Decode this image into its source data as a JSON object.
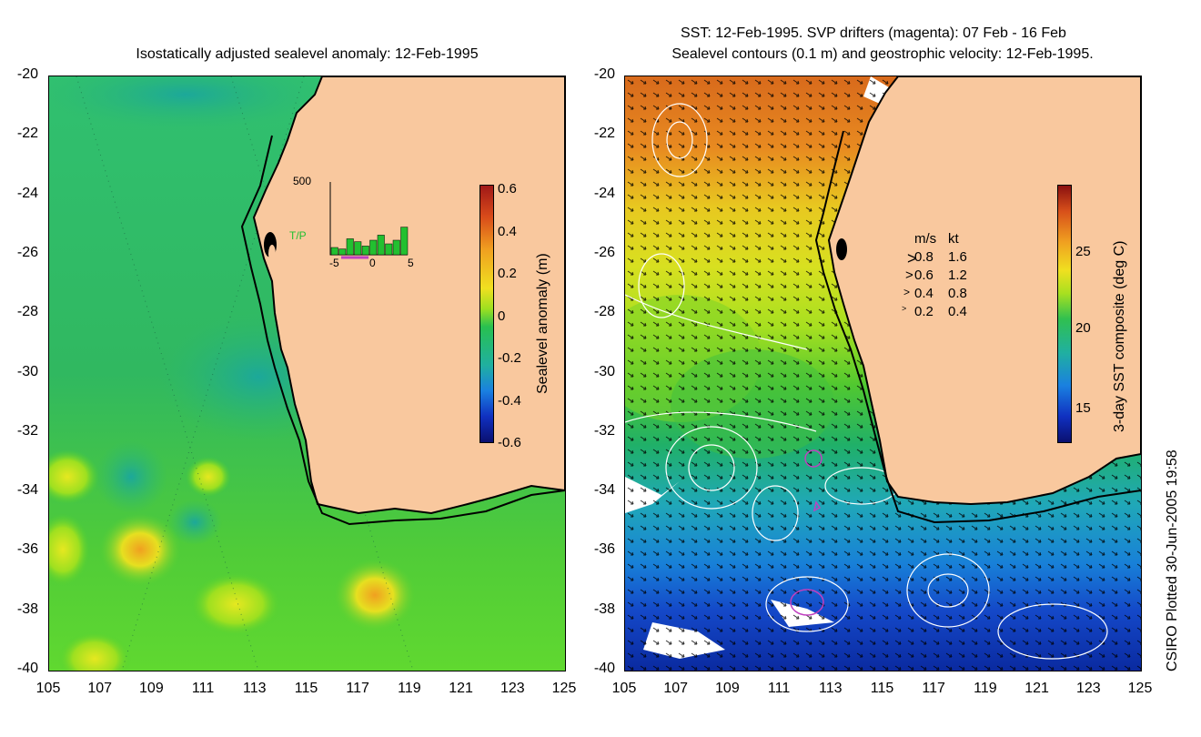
{
  "left_panel": {
    "title": "Isostatically adjusted sealevel anomaly: 12-Feb-1995",
    "colorbar": {
      "label": "Sealevel anomaly (m)",
      "ticks": [
        "0.6",
        "0.4",
        "0.2",
        "0",
        "-0.2",
        "-0.4",
        "-0.6"
      ]
    },
    "inset": {
      "ymax": "500",
      "series_label": "T/P",
      "xticks": [
        "-5",
        "0",
        "5"
      ],
      "bars": [
        0.1,
        0.08,
        0.22,
        0.18,
        0.12,
        0.2,
        0.27,
        0.15,
        0.2,
        0.38
      ]
    }
  },
  "right_panel": {
    "title_line1": "SST: 12-Feb-1995. SVP drifters (magenta): 07 Feb - 16 Feb",
    "title_line2": "Sealevel contours (0.1 m) and geostrophic velocity: 12-Feb-1995.",
    "colorbar": {
      "label": "3-day SST composite (deg C)",
      "ticks": [
        "25",
        "20",
        "15"
      ]
    },
    "velocity_legend": {
      "header_ms": "m/s",
      "header_kt": "kt",
      "rows": [
        {
          "ms": "0.8",
          "kt": "1.6"
        },
        {
          "ms": "0.6",
          "kt": "1.2"
        },
        {
          "ms": "0.4",
          "kt": "0.8"
        },
        {
          "ms": "0.2",
          "kt": "0.4"
        }
      ]
    }
  },
  "axes": {
    "y_ticks": [
      "-20",
      "-22",
      "-24",
      "-26",
      "-28",
      "-30",
      "-32",
      "-34",
      "-36",
      "-38",
      "-40"
    ],
    "x_ticks": [
      "105",
      "107",
      "109",
      "111",
      "113",
      "115",
      "117",
      "119",
      "121",
      "123",
      "125"
    ]
  },
  "footer": "CSIRO Plotted 30-Jun-2005 19:58",
  "colors": {
    "land": "#f9c89e",
    "coast": "#000000",
    "sst_warm": "#e0781a",
    "sst_cool": "#1040c0",
    "sla_zero": "#22b83c",
    "drifter": "#c040c0"
  }
}
